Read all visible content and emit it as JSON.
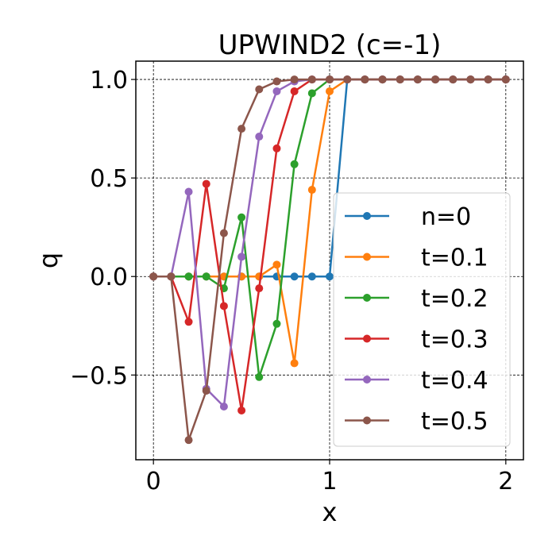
{
  "chart_data": {
    "type": "line",
    "title": "UPWIND2 (c=-1)",
    "xlabel": "x",
    "ylabel": "q",
    "xlim": [
      -0.1,
      2.1
    ],
    "ylim": [
      -0.93,
      1.093
    ],
    "xticks": [
      {
        "v": 0,
        "label": "0"
      },
      {
        "v": 1,
        "label": "1"
      },
      {
        "v": 2,
        "label": "2"
      }
    ],
    "yticks": [
      {
        "v": 1,
        "label": "1.0"
      },
      {
        "v": 0.5,
        "label": "0.5"
      },
      {
        "v": 0,
        "label": "0.0"
      },
      {
        "v": -0.5,
        "label": "−0.5"
      }
    ],
    "grid": true,
    "legend_position": "lower-right",
    "x": [
      0,
      0.1,
      0.2,
      0.3,
      0.4,
      0.5,
      0.6,
      0.7,
      0.8,
      0.9,
      1.0,
      1.1,
      1.2,
      1.3,
      1.4,
      1.5,
      1.6,
      1.7,
      1.8,
      1.9,
      2.0
    ],
    "series": [
      {
        "name": "n=0",
        "color": "#1f77b4",
        "values": [
          0,
          0,
          0,
          0,
          0,
          0,
          0,
          0,
          0,
          0,
          0,
          1,
          1,
          1,
          1,
          1,
          1,
          1,
          1,
          1,
          1
        ]
      },
      {
        "name": "t=0.1",
        "color": "#ff7f0e",
        "values": [
          0,
          0,
          0,
          0,
          0,
          0,
          0,
          0.06,
          -0.44,
          0.44,
          0.94,
          1,
          1,
          1,
          1,
          1,
          1,
          1,
          1,
          1,
          1
        ]
      },
      {
        "name": "t=0.2",
        "color": "#2ca02c",
        "values": [
          0,
          0,
          0,
          0,
          -0.06,
          0.3,
          -0.51,
          -0.24,
          0.57,
          0.93,
          1,
          1,
          1,
          1,
          1,
          1,
          1,
          1,
          1,
          1,
          1
        ]
      },
      {
        "name": "t=0.3",
        "color": "#d62728",
        "values": [
          0,
          0,
          -0.23,
          0.47,
          -0.15,
          -0.68,
          -0.06,
          0.65,
          0.94,
          1,
          1,
          1,
          1,
          1,
          1,
          1,
          1,
          1,
          1,
          1,
          1
        ]
      },
      {
        "name": "t=0.4",
        "color": "#9467bd",
        "values": [
          0,
          0,
          0.43,
          -0.57,
          -0.66,
          0.1,
          0.71,
          0.94,
          0.99,
          1,
          1,
          1,
          1,
          1,
          1,
          1,
          1,
          1,
          1,
          1,
          1
        ]
      },
      {
        "name": "t=0.5",
        "color": "#8c564b",
        "values": [
          0,
          0,
          -0.83,
          -0.58,
          0.22,
          0.75,
          0.95,
          0.99,
          1,
          1,
          1,
          1,
          1,
          1,
          1,
          1,
          1,
          1,
          1,
          1,
          1
        ]
      }
    ]
  }
}
